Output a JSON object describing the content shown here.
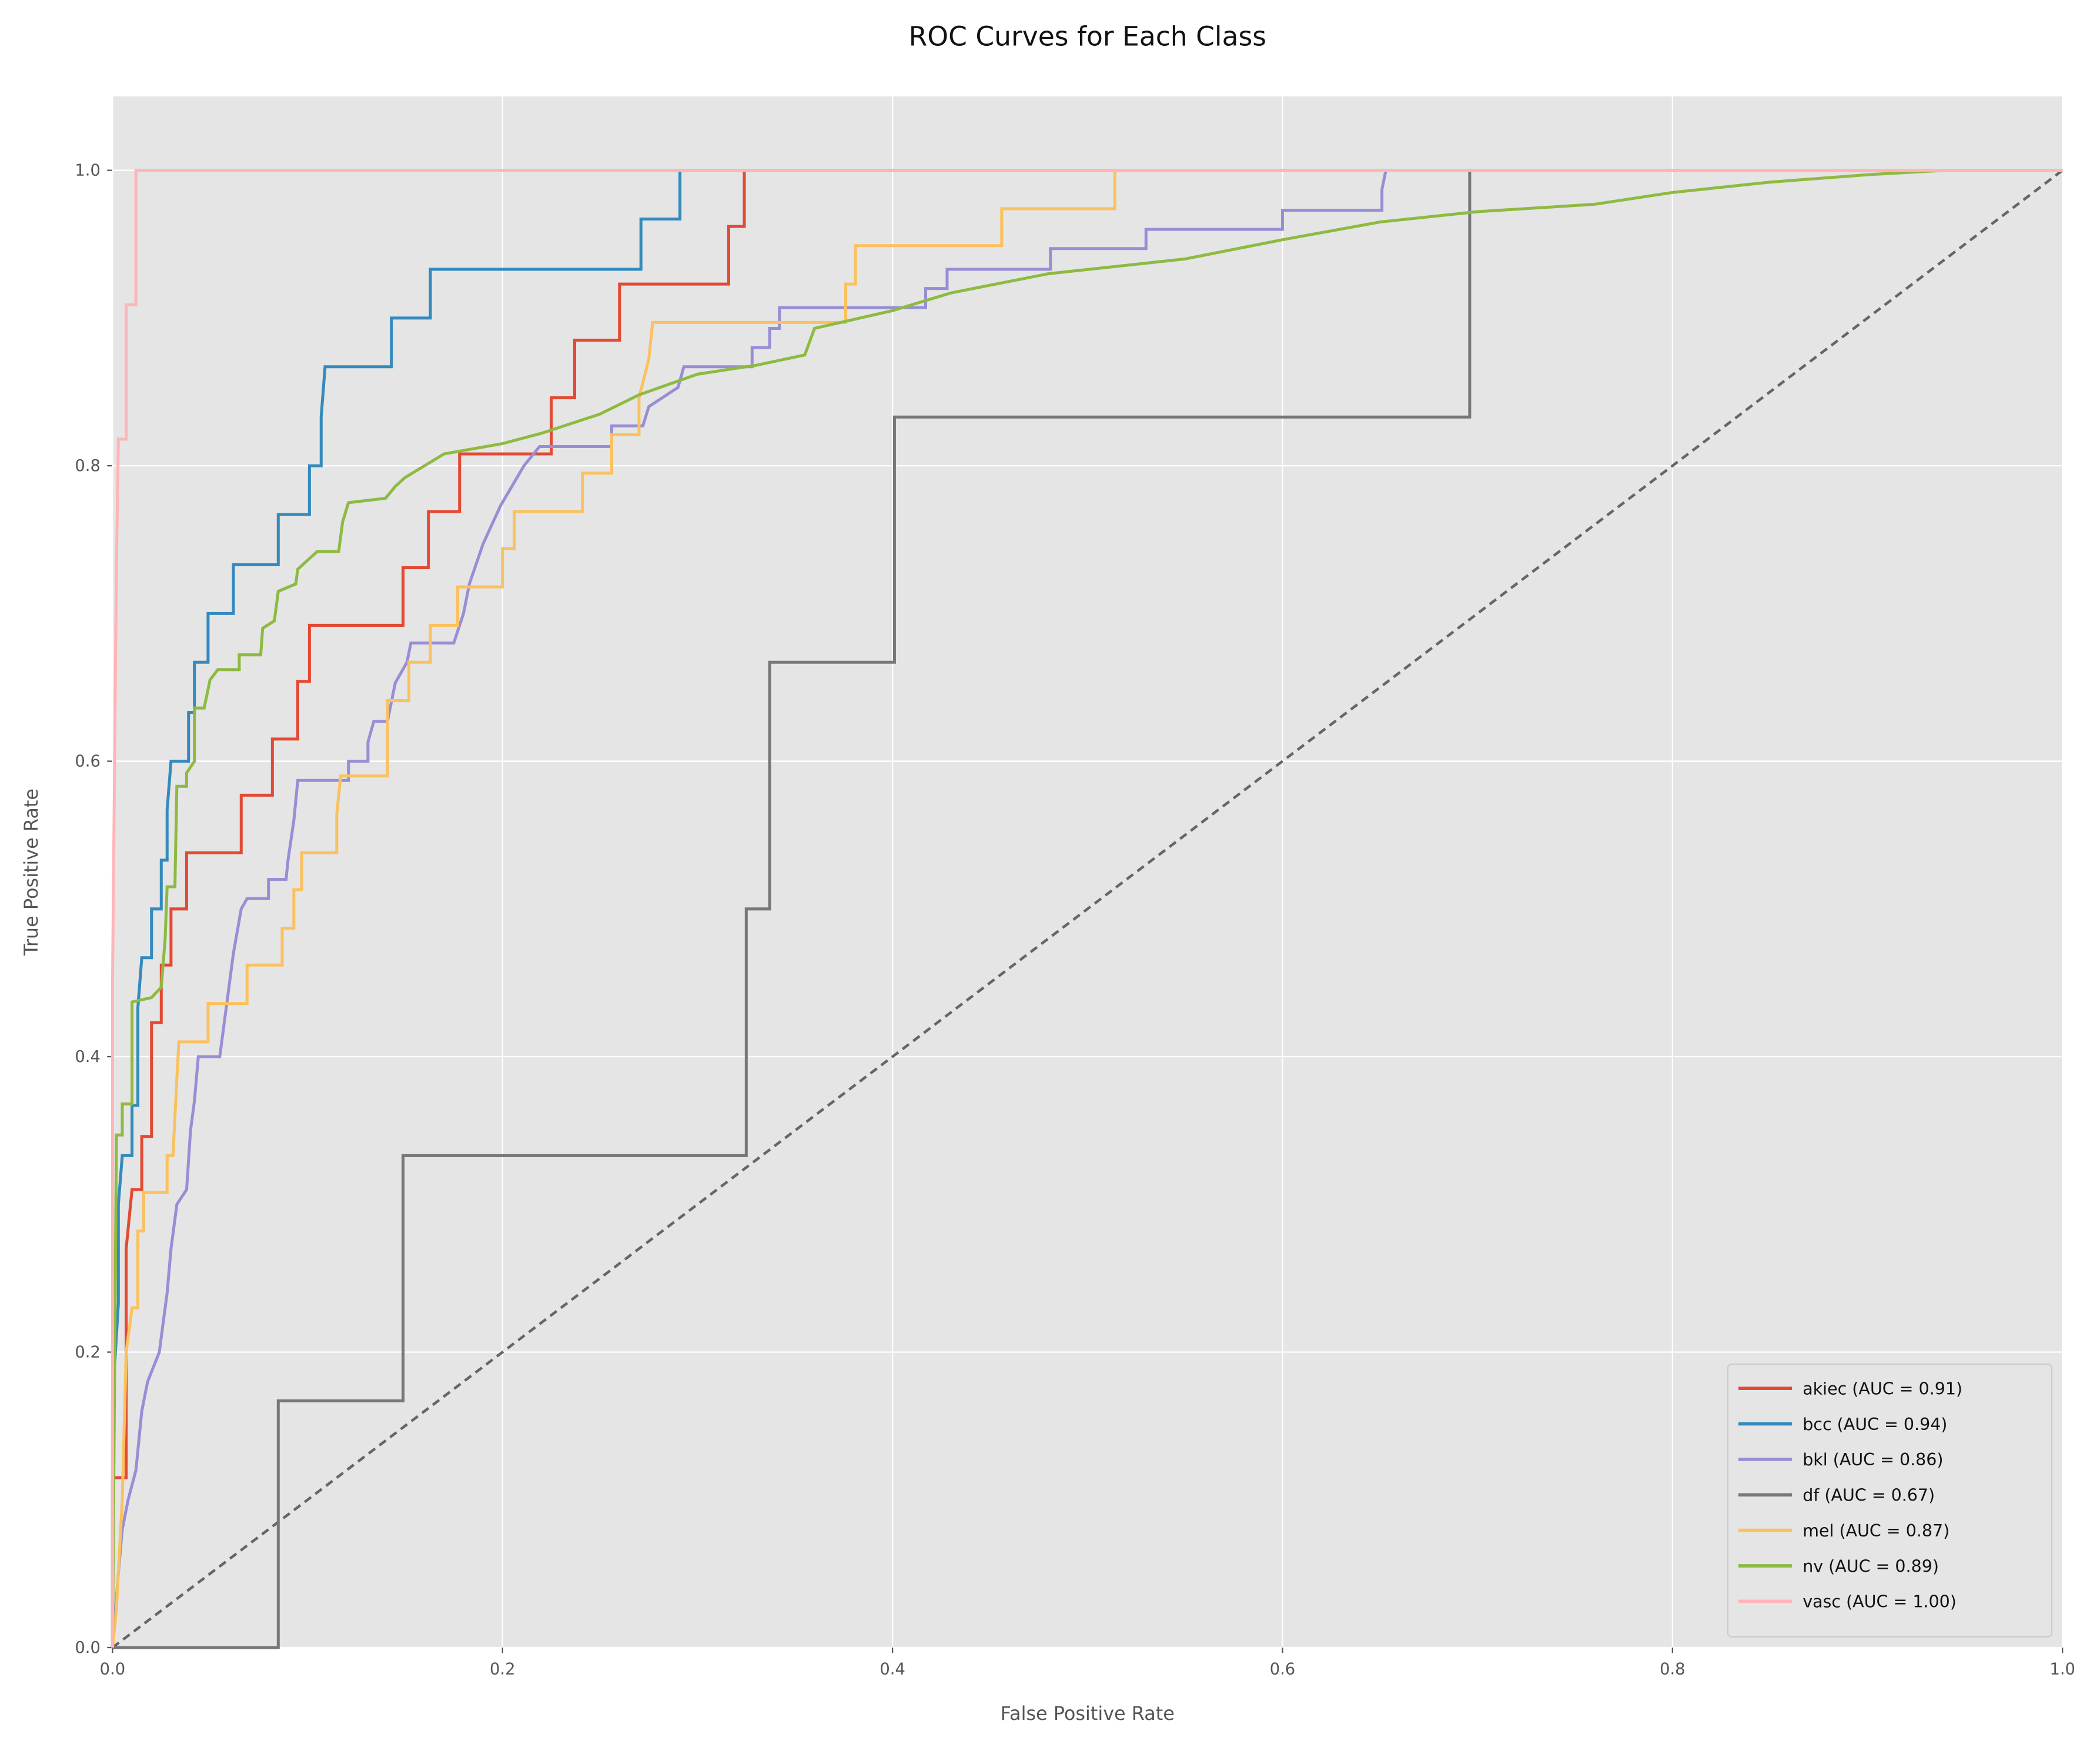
{
  "chart_data": {
    "type": "line",
    "title": "ROC Curves for Each Class",
    "x_label": "False Positive Rate",
    "y_label": "True Positive Rate",
    "xlim": [
      0,
      1
    ],
    "ylim": [
      0,
      1.05
    ],
    "xticks": [
      {
        "value": 0,
        "label": "0.0"
      },
      0.2,
      0.4,
      0.6,
      0.8,
      {
        "value": 1,
        "label": "1.0"
      }
    ],
    "yticks": [
      {
        "value": 0,
        "label": "0.0"
      },
      0.2,
      0.4,
      0.6,
      0.8,
      {
        "value": 1,
        "label": "1.0"
      }
    ],
    "grid": true,
    "legend": "lower right",
    "diagonal": {
      "x": [
        0,
        1
      ],
      "values": [
        0,
        1
      ],
      "color": "#666666"
    },
    "series": [
      {
        "name": "akiec (AUC = 0.91)",
        "color": "#E24A33",
        "x": [
          0,
          0,
          0.007,
          0.007,
          0.01,
          0.015,
          0.015,
          0.02,
          0.02,
          0.025,
          0.025,
          0.03,
          0.03,
          0.038,
          0.038,
          0.066,
          0.066,
          0.082,
          0.082,
          0.095,
          0.095,
          0.101,
          0.101,
          0.149,
          0.149,
          0.162,
          0.162,
          0.178,
          0.178,
          0.225,
          0.225,
          0.237,
          0.237,
          0.26,
          0.26,
          0.316,
          0.316,
          0.324,
          0.324,
          1
        ],
        "values": [
          0,
          0.115,
          0.115,
          0.27,
          0.31,
          0.31,
          0.346,
          0.346,
          0.423,
          0.423,
          0.462,
          0.462,
          0.5,
          0.5,
          0.538,
          0.538,
          0.577,
          0.577,
          0.615,
          0.615,
          0.654,
          0.654,
          0.692,
          0.692,
          0.731,
          0.731,
          0.769,
          0.769,
          0.808,
          0.808,
          0.846,
          0.846,
          0.885,
          0.885,
          0.923,
          0.923,
          0.962,
          0.962,
          1,
          1
        ]
      },
      {
        "name": "bcc (AUC = 0.94)",
        "color": "#348ABD",
        "x": [
          0,
          0,
          0.003,
          0.003,
          0.005,
          0.01,
          0.01,
          0.013,
          0.013,
          0.015,
          0.02,
          0.02,
          0.025,
          0.025,
          0.028,
          0.028,
          0.03,
          0.039,
          0.039,
          0.042,
          0.042,
          0.049,
          0.049,
          0.062,
          0.062,
          0.085,
          0.085,
          0.101,
          0.101,
          0.107,
          0.107,
          0.109,
          0.143,
          0.143,
          0.163,
          0.163,
          0.271,
          0.271,
          0.291,
          0.291,
          1
        ],
        "values": [
          0,
          0.167,
          0.233,
          0.3,
          0.333,
          0.333,
          0.367,
          0.367,
          0.433,
          0.467,
          0.467,
          0.5,
          0.5,
          0.533,
          0.533,
          0.567,
          0.6,
          0.6,
          0.633,
          0.633,
          0.667,
          0.667,
          0.7,
          0.7,
          0.733,
          0.733,
          0.767,
          0.767,
          0.8,
          0.8,
          0.833,
          0.867,
          0.867,
          0.9,
          0.9,
          0.933,
          0.933,
          0.967,
          0.967,
          1,
          1
        ]
      },
      {
        "name": "bkl (AUC = 0.86)",
        "color": "#988ED5",
        "x": [
          0,
          0.003,
          0.005,
          0.008,
          0.012,
          0.015,
          0.018,
          0.024,
          0.028,
          0.03,
          0.033,
          0.038,
          0.04,
          0.042,
          0.044,
          0.055,
          0.058,
          0.062,
          0.066,
          0.069,
          0.08,
          0.08,
          0.089,
          0.09,
          0.093,
          0.095,
          0.121,
          0.121,
          0.131,
          0.131,
          0.134,
          0.141,
          0.145,
          0.151,
          0.153,
          0.175,
          0.18,
          0.183,
          0.19,
          0.199,
          0.211,
          0.219,
          0.256,
          0.256,
          0.272,
          0.275,
          0.29,
          0.293,
          0.328,
          0.328,
          0.337,
          0.337,
          0.342,
          0.342,
          0.417,
          0.417,
          0.428,
          0.428,
          0.481,
          0.481,
          0.53,
          0.53,
          0.6,
          0.6,
          0.651,
          0.651,
          0.653,
          1
        ],
        "values": [
          0,
          0.05,
          0.08,
          0.1,
          0.12,
          0.16,
          0.18,
          0.2,
          0.24,
          0.27,
          0.3,
          0.31,
          0.35,
          0.37,
          0.4,
          0.4,
          0.43,
          0.47,
          0.5,
          0.507,
          0.507,
          0.52,
          0.52,
          0.533,
          0.56,
          0.587,
          0.587,
          0.6,
          0.6,
          0.613,
          0.627,
          0.627,
          0.653,
          0.667,
          0.68,
          0.68,
          0.7,
          0.72,
          0.747,
          0.773,
          0.8,
          0.813,
          0.813,
          0.827,
          0.827,
          0.84,
          0.853,
          0.867,
          0.867,
          0.88,
          0.88,
          0.893,
          0.893,
          0.907,
          0.907,
          0.92,
          0.92,
          0.933,
          0.933,
          0.947,
          0.947,
          0.96,
          0.96,
          0.973,
          0.973,
          0.987,
          1,
          1
        ]
      },
      {
        "name": "df (AUC = 0.67)",
        "color": "#777777",
        "x": [
          0,
          0.085,
          0.085,
          0.149,
          0.149,
          0.325,
          0.325,
          0.337,
          0.337,
          0.401,
          0.401,
          0.696,
          0.696,
          1
        ],
        "values": [
          0,
          0,
          0.167,
          0.167,
          0.333,
          0.333,
          0.5,
          0.5,
          0.667,
          0.667,
          0.833,
          0.833,
          1,
          1
        ]
      },
      {
        "name": "mel (AUC = 0.87)",
        "color": "#FBC15E",
        "x": [
          0,
          0.002,
          0.005,
          0.007,
          0.01,
          0.013,
          0.013,
          0.016,
          0.016,
          0.028,
          0.028,
          0.031,
          0.033,
          0.034,
          0.049,
          0.049,
          0.069,
          0.069,
          0.087,
          0.087,
          0.093,
          0.093,
          0.097,
          0.097,
          0.115,
          0.115,
          0.117,
          0.141,
          0.141,
          0.152,
          0.152,
          0.163,
          0.163,
          0.177,
          0.177,
          0.2,
          0.2,
          0.206,
          0.206,
          0.241,
          0.241,
          0.256,
          0.256,
          0.27,
          0.27,
          0.275,
          0.277,
          0.376,
          0.376,
          0.381,
          0.381,
          0.456,
          0.456,
          0.514,
          0.514,
          1
        ],
        "values": [
          0,
          0.026,
          0.1,
          0.2,
          0.23,
          0.23,
          0.282,
          0.282,
          0.308,
          0.308,
          0.333,
          0.333,
          0.385,
          0.41,
          0.41,
          0.436,
          0.436,
          0.462,
          0.462,
          0.487,
          0.487,
          0.513,
          0.513,
          0.538,
          0.538,
          0.564,
          0.59,
          0.59,
          0.641,
          0.641,
          0.667,
          0.667,
          0.692,
          0.692,
          0.718,
          0.718,
          0.744,
          0.744,
          0.769,
          0.769,
          0.795,
          0.795,
          0.821,
          0.821,
          0.846,
          0.872,
          0.897,
          0.897,
          0.923,
          0.923,
          0.949,
          0.949,
          0.974,
          0.974,
          1,
          1
        ]
      },
      {
        "name": "nv (AUC = 0.89)",
        "color": "#8EBA42",
        "x": [
          0,
          0.002,
          0.005,
          0.005,
          0.01,
          0.01,
          0.02,
          0.025,
          0.027,
          0.028,
          0.032,
          0.033,
          0.038,
          0.038,
          0.042,
          0.042,
          0.047,
          0.05,
          0.054,
          0.065,
          0.065,
          0.076,
          0.077,
          0.083,
          0.085,
          0.094,
          0.095,
          0.105,
          0.116,
          0.118,
          0.121,
          0.14,
          0.145,
          0.15,
          0.16,
          0.17,
          0.2,
          0.22,
          0.25,
          0.27,
          0.3,
          0.33,
          0.355,
          0.36,
          0.4,
          0.43,
          0.48,
          0.55,
          0.6,
          0.65,
          0.7,
          0.76,
          0.8,
          0.85,
          0.9,
          0.94,
          1
        ],
        "values": [
          0,
          0.347,
          0.347,
          0.368,
          0.368,
          0.437,
          0.44,
          0.447,
          0.48,
          0.515,
          0.515,
          0.583,
          0.583,
          0.592,
          0.6,
          0.636,
          0.636,
          0.655,
          0.662,
          0.662,
          0.672,
          0.672,
          0.69,
          0.695,
          0.715,
          0.72,
          0.73,
          0.742,
          0.742,
          0.762,
          0.775,
          0.778,
          0.786,
          0.792,
          0.8,
          0.808,
          0.815,
          0.822,
          0.835,
          0.848,
          0.862,
          0.868,
          0.875,
          0.893,
          0.905,
          0.917,
          0.93,
          0.94,
          0.953,
          0.965,
          0.972,
          0.977,
          0.985,
          0.992,
          0.997,
          1,
          1
        ]
      },
      {
        "name": "vasc (AUC = 1.00)",
        "color": "#FFB5B8",
        "x": [
          0,
          0,
          0.002,
          0.003,
          0.007,
          0.007,
          0.012,
          0.012,
          1
        ],
        "values": [
          0,
          0.45,
          0.73,
          0.818,
          0.818,
          0.909,
          0.909,
          1,
          1
        ]
      }
    ]
  }
}
